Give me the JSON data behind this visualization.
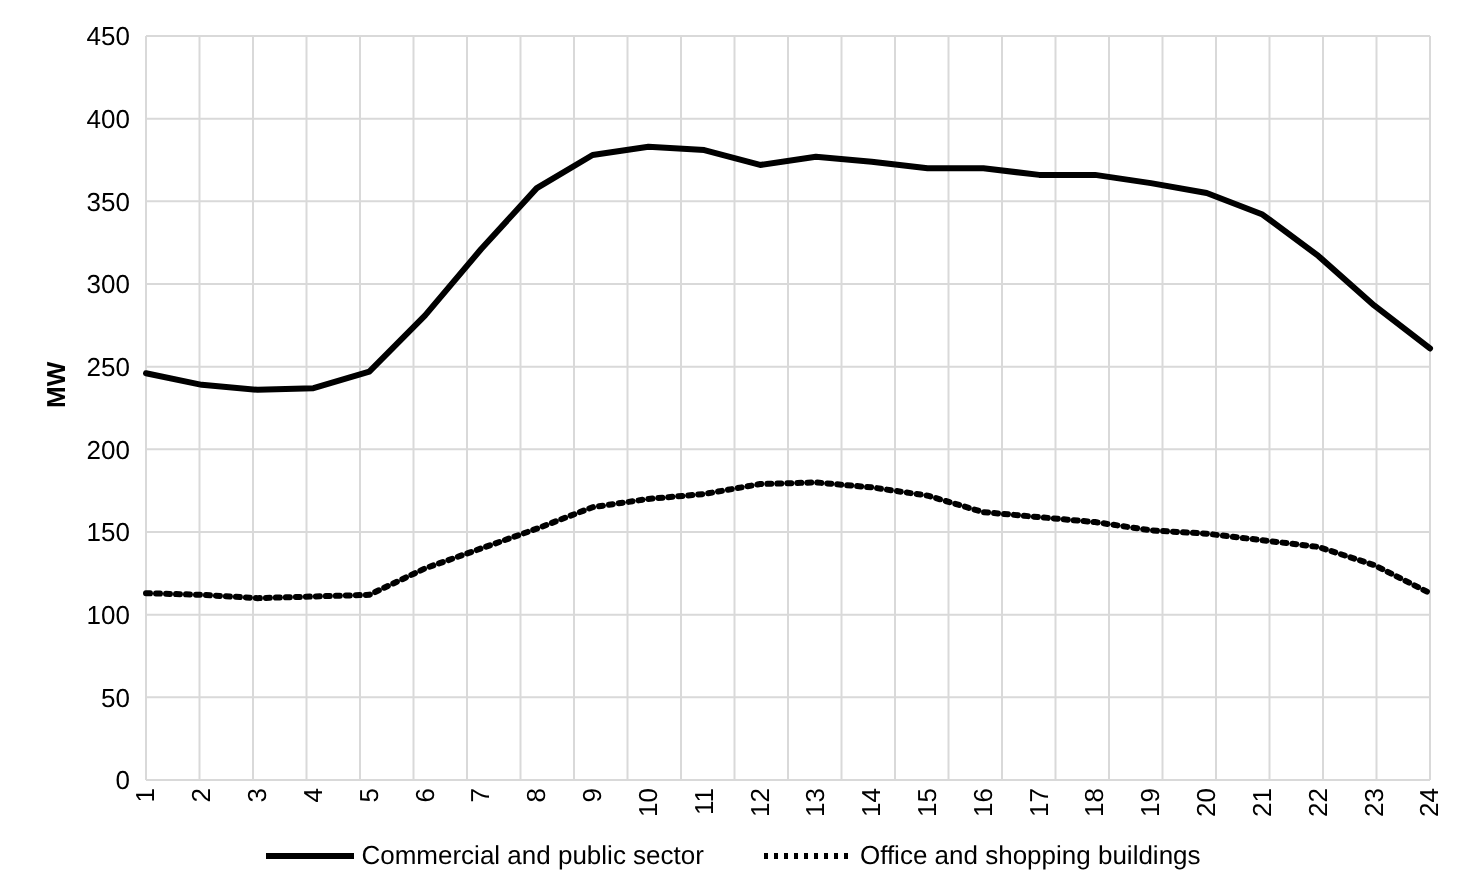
{
  "chart_data": {
    "type": "line",
    "ylabel": "MW",
    "categories": [
      "1",
      "2",
      "3",
      "4",
      "5",
      "6",
      "7",
      "8",
      "9",
      "10",
      "11",
      "12",
      "13",
      "14",
      "15",
      "16",
      "17",
      "18",
      "19",
      "20",
      "21",
      "22",
      "23",
      "24"
    ],
    "series": [
      {
        "name": "Commercial and public sector",
        "color": "#000000",
        "line_style": "solid",
        "values": [
          246,
          239,
          236,
          237,
          247,
          281,
          321,
          358,
          378,
          383,
          381,
          372,
          377,
          374,
          370,
          370,
          366,
          366,
          361,
          355,
          342,
          317,
          287,
          261
        ]
      },
      {
        "name": "Office and shopping buildings",
        "color": "#000000",
        "line_style": "dotted",
        "values": [
          113,
          112,
          110,
          111,
          112,
          128,
          140,
          152,
          165,
          170,
          173,
          179,
          180,
          177,
          172,
          162,
          159,
          156,
          151,
          149,
          145,
          141,
          130,
          113
        ]
      }
    ],
    "ylim": [
      0,
      450
    ],
    "yticks": [
      0,
      50,
      100,
      150,
      200,
      250,
      300,
      350,
      400,
      450
    ],
    "grid": true,
    "legend": "bottom",
    "marker": "none"
  }
}
